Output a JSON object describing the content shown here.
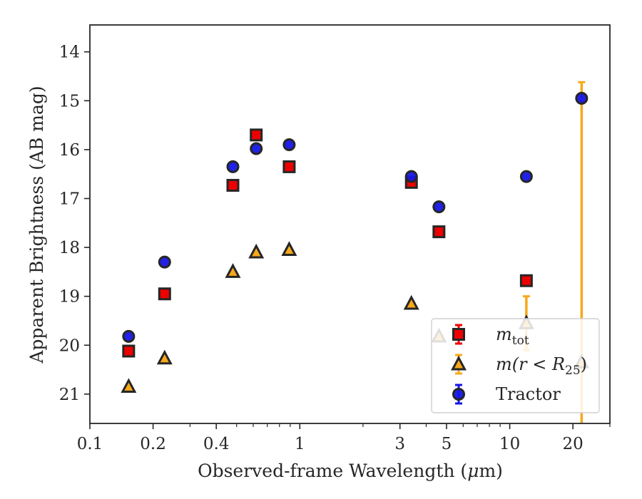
{
  "chart_data": {
    "type": "scatter",
    "xlabel": "Observed-frame Wavelength (",
    "xlabel_mu": "μ",
    "xlabel_end": "m)",
    "ylabel": "Apparent Brightness (AB mag)",
    "x_scale": "log",
    "xlim": [
      0.1,
      30
    ],
    "ylim": [
      21.6,
      13.45
    ],
    "y_inverted": true,
    "grid": false,
    "legend_placement": "lower-right",
    "x_ticks": [
      {
        "value": 0.1,
        "label": "0.1"
      },
      {
        "value": 0.2,
        "label": "0.2"
      },
      {
        "value": 0.4,
        "label": "0.4"
      },
      {
        "value": 1,
        "label": "1"
      },
      {
        "value": 3,
        "label": "3"
      },
      {
        "value": 5,
        "label": "5"
      },
      {
        "value": 10,
        "label": "10"
      },
      {
        "value": 20,
        "label": "20"
      }
    ],
    "x_minor_ticks": [
      0.3,
      0.5,
      0.6,
      0.7,
      0.8,
      0.9,
      2,
      4,
      6,
      7,
      8,
      9,
      30
    ],
    "y_ticks": [
      {
        "value": 14,
        "label": "14"
      },
      {
        "value": 15,
        "label": "15"
      },
      {
        "value": 16,
        "label": "16"
      },
      {
        "value": 17,
        "label": "17"
      },
      {
        "value": 18,
        "label": "18"
      },
      {
        "value": 19,
        "label": "19"
      },
      {
        "value": 20,
        "label": "20"
      },
      {
        "value": 21,
        "label": "21"
      }
    ],
    "series": [
      {
        "key": "r25",
        "legend_label": {
          "base": "m(r < R",
          "sub": "25",
          "end": ")"
        },
        "marker": "triangle",
        "face_color": "#f7a81b",
        "edge_color": "#262626",
        "errorbar_color": "#f7a81b",
        "points": [
          {
            "x": 0.153,
            "y": 20.85
          },
          {
            "x": 0.227,
            "y": 20.27
          },
          {
            "x": 0.48,
            "y": 18.5
          },
          {
            "x": 0.62,
            "y": 18.1
          },
          {
            "x": 0.89,
            "y": 18.05
          },
          {
            "x": 3.4,
            "y": 19.15
          },
          {
            "x": 4.6,
            "y": 19.82
          },
          {
            "x": 12.0,
            "y": 19.55,
            "yerr_up": 0.55,
            "yerr_down": 0.55
          },
          {
            "x": 22.0,
            "y": 20.35
          }
        ]
      },
      {
        "key": "mtot",
        "legend_label": {
          "base": "m",
          "sub": "tot",
          "end": ""
        },
        "marker": "square",
        "face_color": "#ee0000",
        "edge_color": "#262626",
        "errorbar_color": "#ee0000",
        "points": [
          {
            "x": 0.153,
            "y": 20.12
          },
          {
            "x": 0.227,
            "y": 18.95
          },
          {
            "x": 0.48,
            "y": 16.73
          },
          {
            "x": 0.62,
            "y": 15.7
          },
          {
            "x": 0.89,
            "y": 16.35
          },
          {
            "x": 3.4,
            "y": 16.67
          },
          {
            "x": 4.6,
            "y": 17.68
          },
          {
            "x": 12.0,
            "y": 18.68
          }
        ]
      },
      {
        "key": "tractor",
        "legend_label": {
          "base": "Tractor",
          "sub": "",
          "end": ""
        },
        "marker": "circle",
        "face_color": "#1515e6",
        "edge_color": "#262626",
        "errorbar_color": "#1515e6",
        "points": [
          {
            "x": 0.153,
            "y": 19.82
          },
          {
            "x": 0.227,
            "y": 18.3
          },
          {
            "x": 0.48,
            "y": 16.35
          },
          {
            "x": 0.62,
            "y": 15.98
          },
          {
            "x": 0.89,
            "y": 15.9
          },
          {
            "x": 3.4,
            "y": 16.55
          },
          {
            "x": 4.6,
            "y": 17.17
          },
          {
            "x": 12.0,
            "y": 16.55
          },
          {
            "x": 22.0,
            "y": 14.95
          }
        ]
      }
    ],
    "extra_errorbars": [
      {
        "series_key": "r25",
        "x": 22.0,
        "y_from": 14.62,
        "y_to": 21.6,
        "color": "#f7a81b"
      }
    ],
    "legend_order": [
      "mtot",
      "r25",
      "tractor"
    ]
  }
}
